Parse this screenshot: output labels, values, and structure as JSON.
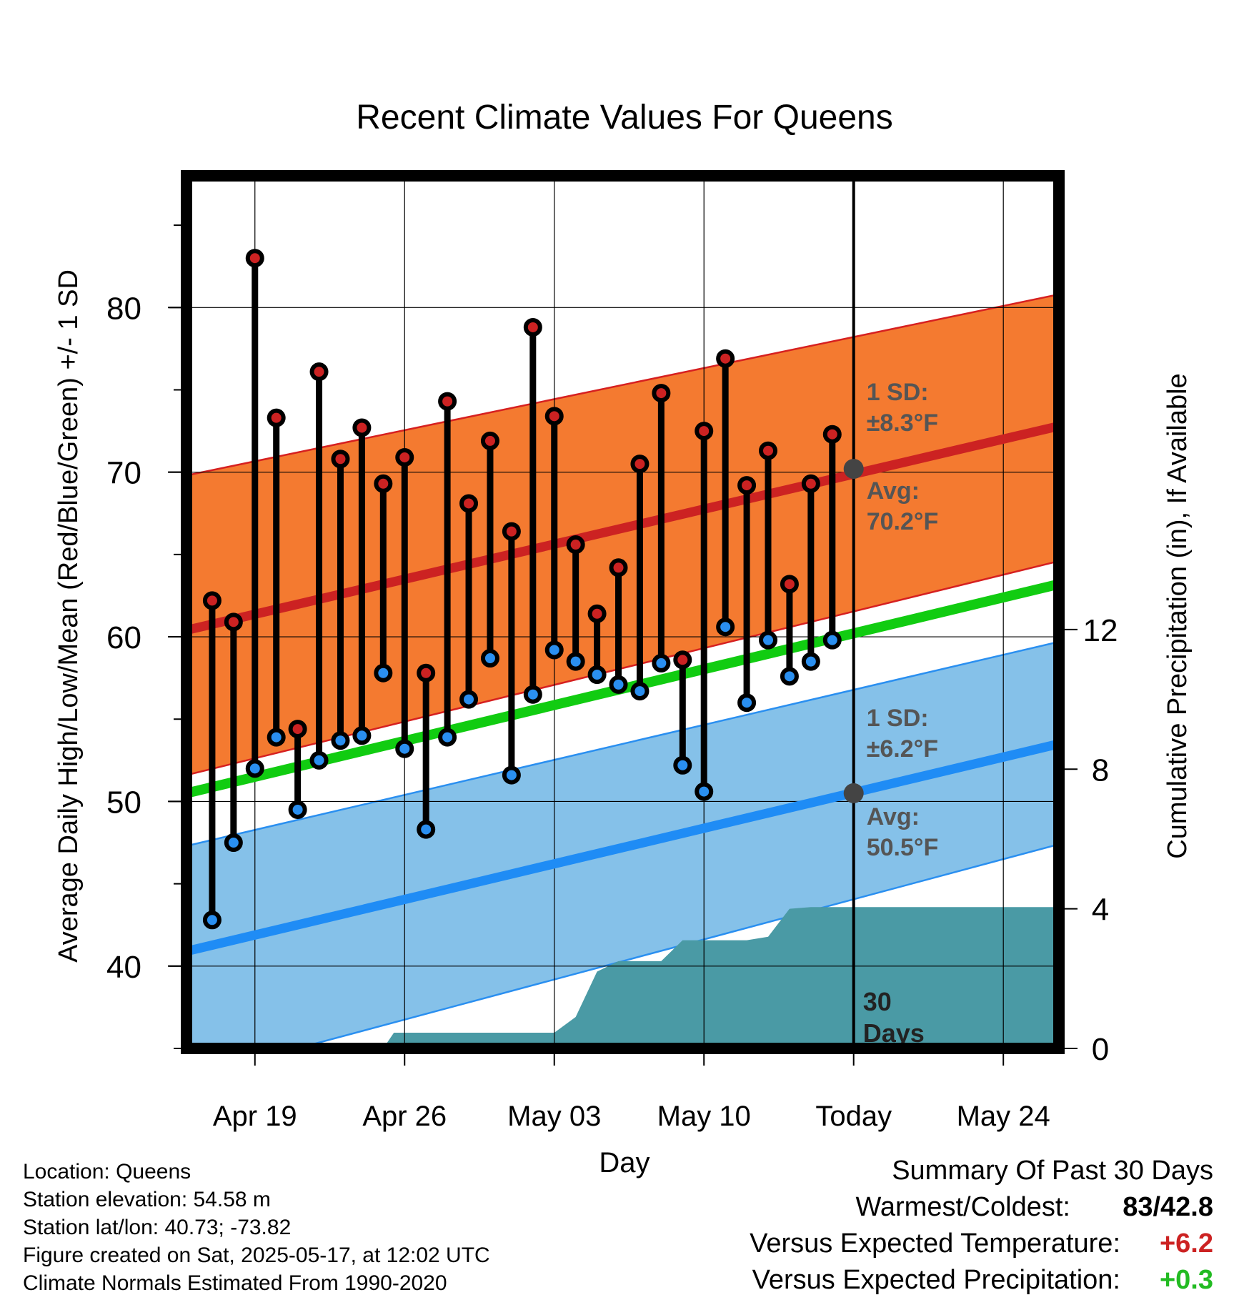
{
  "chart_data": {
    "type": "line",
    "title": "Recent Climate Values For Queens",
    "xlabel": "Day",
    "ylabel": "Average Daily High/Low/Mean (Red/Blue/Green) +/- 1 SD",
    "y2label": "Cumulative Precipitation (in), If Available",
    "x_ticks": [
      "Apr 19",
      "Apr 26",
      "May 03",
      "May 10",
      "Today",
      "May 24"
    ],
    "y_ticks": [
      40,
      50,
      60,
      70,
      80
    ],
    "y2_ticks": [
      0,
      4,
      8,
      12
    ],
    "ylim": [
      35,
      88
    ],
    "y2lim": [
      0,
      25
    ],
    "xlim": [
      "Apr 15.8",
      "May 26.6"
    ],
    "today": "May 17",
    "days": [
      "Apr 17",
      "Apr 18",
      "Apr 19",
      "Apr 20",
      "Apr 21",
      "Apr 22",
      "Apr 23",
      "Apr 24",
      "Apr 25",
      "Apr 26",
      "Apr 27",
      "Apr 28",
      "Apr 29",
      "Apr 30",
      "May 01",
      "May 02",
      "May 03",
      "May 04",
      "May 05",
      "May 06",
      "May 07",
      "May 08",
      "May 09",
      "May 10",
      "May 11",
      "May 12",
      "May 13",
      "May 14",
      "May 15",
      "May 16"
    ],
    "series": [
      {
        "name": "High",
        "color": "#cc2222",
        "values": [
          62.2,
          60.9,
          83.0,
          73.3,
          54.4,
          76.1,
          70.8,
          72.7,
          69.3,
          70.9,
          57.8,
          74.3,
          68.1,
          71.9,
          66.4,
          78.8,
          73.4,
          65.6,
          61.4,
          64.2,
          70.5,
          74.8,
          58.6,
          72.5,
          76.9,
          69.2,
          71.3,
          63.2,
          69.3,
          72.3
        ]
      },
      {
        "name": "Low",
        "color": "#2a8ff0",
        "values": [
          42.8,
          47.5,
          52.0,
          53.9,
          49.5,
          52.5,
          53.7,
          54.0,
          57.8,
          53.2,
          48.3,
          53.9,
          56.2,
          58.7,
          51.6,
          56.5,
          59.2,
          58.5,
          57.7,
          57.1,
          56.7,
          58.4,
          52.2,
          50.6,
          60.6,
          56.0,
          59.8,
          57.6,
          58.5,
          59.8
        ]
      }
    ],
    "normals": {
      "high_avg": {
        "start": 60.4,
        "end": 72.8
      },
      "high_sd_band": {
        "start_low": 51.6,
        "start_high": 69.8,
        "end_low": 64.6,
        "end_high": 80.8
      },
      "mean_avg": {
        "start": 50.5,
        "end": 63.2
      },
      "low_avg": {
        "start": 40.9,
        "end": 53.5
      },
      "low_sd_band": {
        "start_low": 33.2,
        "start_high": 47.3,
        "end_low": 47.4,
        "end_high": 59.7
      }
    },
    "precip_cumulative": [
      {
        "day": "Apr 15.8",
        "value": 0
      },
      {
        "day": "Apr 25",
        "value": 0
      },
      {
        "day": "Apr 25.5",
        "value": 0.45
      },
      {
        "day": "May 03",
        "value": 0.45
      },
      {
        "day": "May 04",
        "value": 0.9
      },
      {
        "day": "May 05",
        "value": 2.2
      },
      {
        "day": "May 06",
        "value": 2.5
      },
      {
        "day": "May 07",
        "value": 2.5
      },
      {
        "day": "May 08",
        "value": 2.5
      },
      {
        "day": "May 09",
        "value": 3.1
      },
      {
        "day": "May 10",
        "value": 3.1
      },
      {
        "day": "May 11",
        "value": 3.1
      },
      {
        "day": "May 12",
        "value": 3.1
      },
      {
        "day": "May 13",
        "value": 3.2
      },
      {
        "day": "May 14",
        "value": 4.0
      },
      {
        "day": "May 15",
        "value": 4.05
      },
      {
        "day": "May 26.6",
        "value": 4.05
      }
    ],
    "annotations": {
      "high_sd_label": "1 SD:",
      "high_sd_value": "±8.3°F",
      "high_avg_label": "Avg:",
      "high_avg_value": "70.2°F",
      "low_sd_label": "1 SD:",
      "low_sd_value": "±6.2°F",
      "low_avg_label": "Avg:",
      "low_avg_value": "50.5°F",
      "window_line1": "30",
      "window_line2": "Days",
      "today_high_avg": 70.2,
      "today_low_avg": 50.5
    },
    "colors": {
      "high_band": "#f47a30",
      "high_line": "#cc2222",
      "mean_line": "#11cc11",
      "low_band": "#85c1e9",
      "low_line": "#1f8cf5",
      "band_edge_high": "#d62020",
      "band_edge_low": "#2a8ff0",
      "precip": "#4a9aa5",
      "today_marker": "#444444",
      "annotation_text": "#555555",
      "window_text": "#222222"
    },
    "grid": true
  },
  "meta": {
    "location": "Location: Queens",
    "elevation": "Station elevation: 54.58 m",
    "latlon": "Station lat/lon: 40.73; -73.82",
    "created": "Figure created on Sat, 2025-05-17, at 12:02 UTC",
    "normals": "Climate Normals Estimated From 1990-2020"
  },
  "summary": {
    "heading": "Summary Of Past 30 Days",
    "warmest_label": "Warmest/Coldest:",
    "warmest_value": "83",
    "coldest_value": "42.8",
    "temp_label": "Versus Expected Temperature:",
    "temp_value": "+6.2",
    "temp_color": "#cc2222",
    "precip_label": "Versus Expected Precipitation:",
    "precip_value": "+0.3",
    "precip_color": "#22bb22"
  }
}
